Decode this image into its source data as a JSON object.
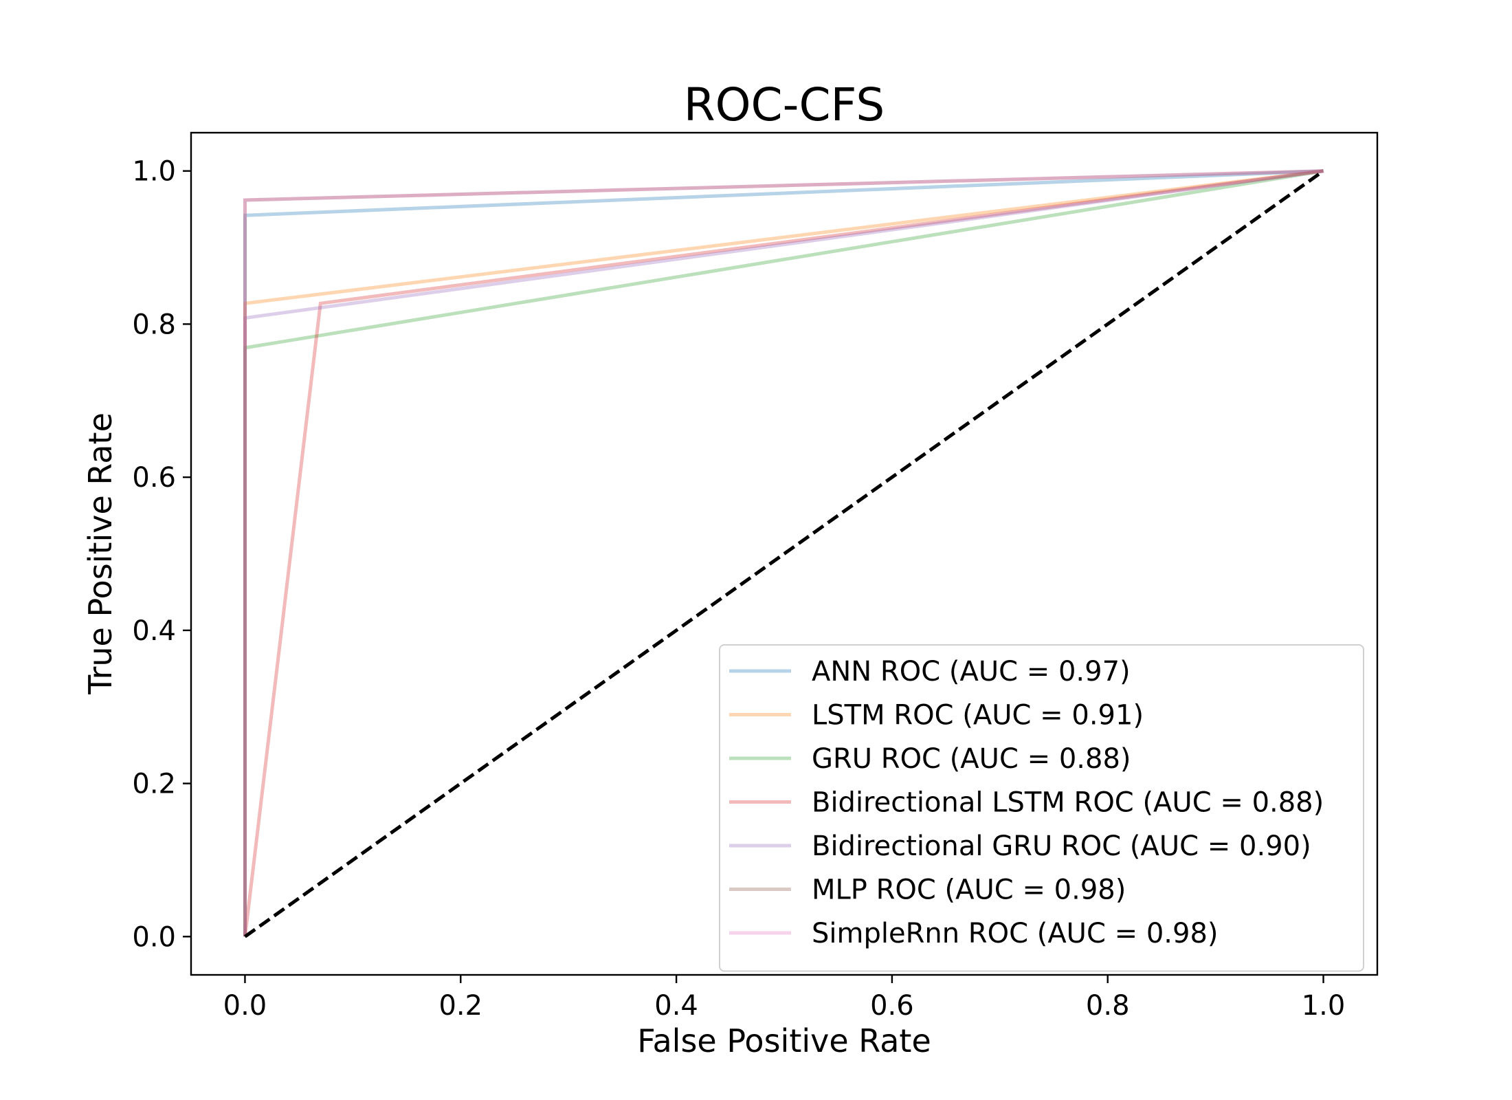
{
  "chart_data": {
    "type": "line",
    "title": "ROC-CFS",
    "xlabel": "False Positive Rate",
    "ylabel": "True Positive Rate",
    "xlim": [
      -0.05,
      1.05
    ],
    "ylim": [
      -0.05,
      1.05
    ],
    "xticks": [
      0.0,
      0.2,
      0.4,
      0.6,
      0.8,
      1.0
    ],
    "yticks": [
      0.0,
      0.2,
      0.4,
      0.6,
      0.8,
      1.0
    ],
    "tick_labels_x": [
      "0.0",
      "0.2",
      "0.4",
      "0.6",
      "0.8",
      "1.0"
    ],
    "tick_labels_y": [
      "0.0",
      "0.2",
      "0.4",
      "0.6",
      "0.8",
      "1.0"
    ],
    "grid": false,
    "legend_position": "lower-right",
    "series": [
      {
        "name": "ANN ROC (AUC = 0.97)",
        "color": "#1f77b4",
        "x": [
          0.0,
          0.0,
          1.0
        ],
        "y": [
          0.0,
          0.942,
          1.0
        ]
      },
      {
        "name": "LSTM ROC (AUC = 0.91)",
        "color": "#ff7f0e",
        "x": [
          0.0,
          0.0,
          1.0
        ],
        "y": [
          0.0,
          0.827,
          1.0
        ]
      },
      {
        "name": "GRU ROC (AUC = 0.88)",
        "color": "#2ca02c",
        "x": [
          0.0,
          0.0,
          1.0
        ],
        "y": [
          0.0,
          0.769,
          1.0
        ]
      },
      {
        "name": "Bidirectional LSTM ROC (AUC = 0.88)",
        "color": "#d62728",
        "x": [
          0.0,
          0.07,
          1.0
        ],
        "y": [
          0.0,
          0.827,
          1.0
        ]
      },
      {
        "name": "Bidirectional GRU ROC (AUC = 0.90)",
        "color": "#9467bd",
        "x": [
          0.0,
          0.0,
          1.0
        ],
        "y": [
          0.0,
          0.808,
          1.0
        ]
      },
      {
        "name": "MLP ROC (AUC = 0.98)",
        "color": "#8c564b",
        "x": [
          0.0,
          0.0,
          1.0
        ],
        "y": [
          0.0,
          0.962,
          1.0
        ]
      },
      {
        "name": "SimpleRnn ROC (AUC = 0.98)",
        "color": "#e377c2",
        "x": [
          0.0,
          0.0,
          1.0
        ],
        "y": [
          0.0,
          0.962,
          1.0
        ]
      }
    ],
    "reference_line": {
      "x": [
        0.0,
        1.0
      ],
      "y": [
        0.0,
        1.0
      ],
      "color": "#000000",
      "style": "dashed"
    }
  }
}
